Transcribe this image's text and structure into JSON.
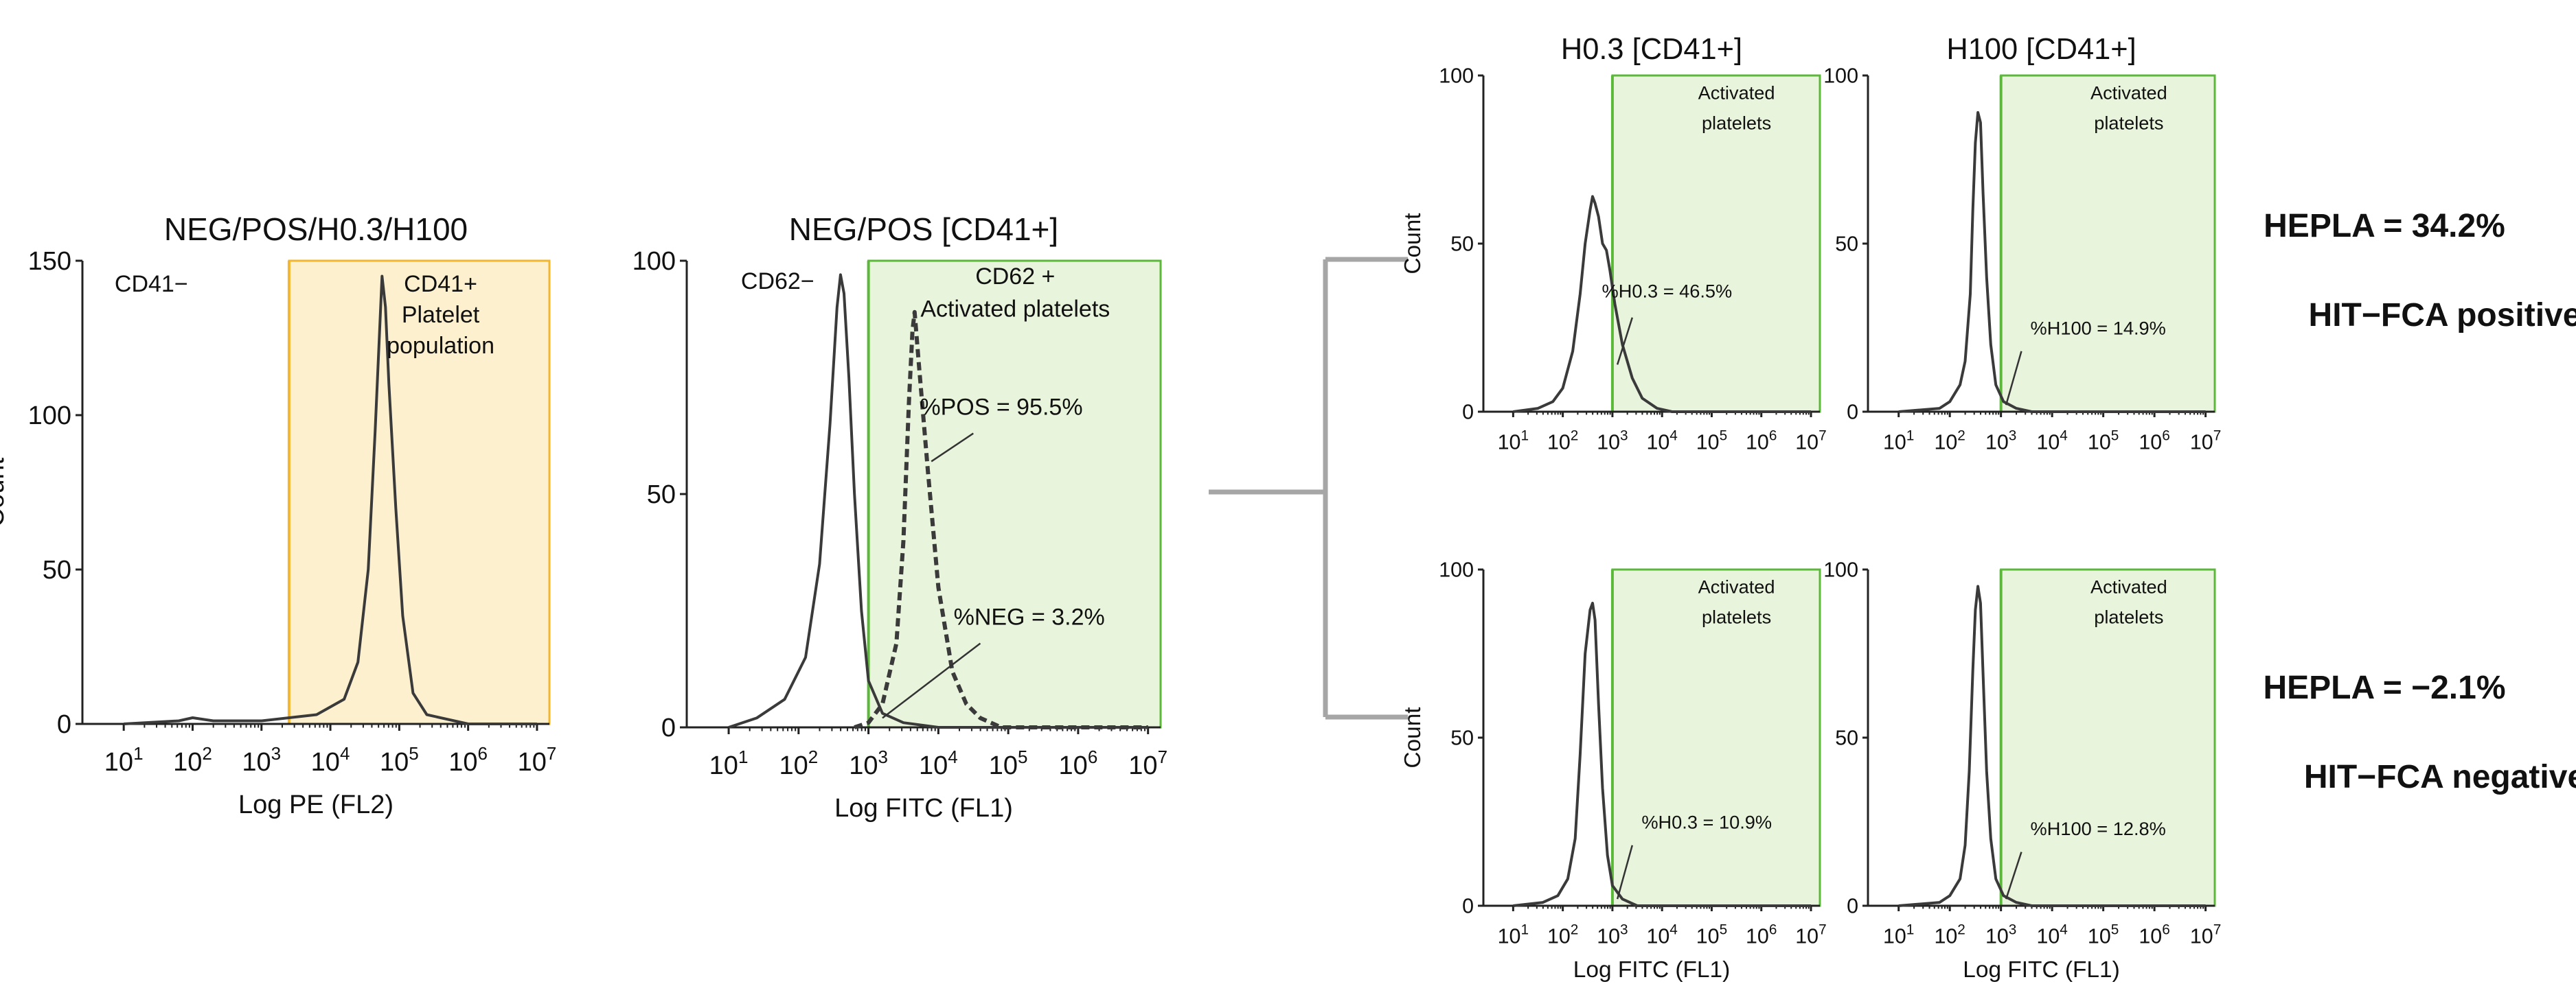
{
  "colors": {
    "cd41_gate_fill": "#fdf0cf",
    "cd41_gate_line": "#f2b630",
    "activation_gate_fill": "#e8f4dc",
    "activation_gate_line": "#5cb83a",
    "curve": "#3a3a3a",
    "connector": "#a6a6a6"
  },
  "chart_data": [
    {
      "id": "panelA",
      "type": "histogram",
      "title": "NEG/POS/H0.3/H100",
      "xlabel": "Log PE (FL2)",
      "ylabel": "Count",
      "xscale": "log",
      "xlim": [
        10,
        10000000
      ],
      "ylim": [
        0,
        150
      ],
      "xticks": [
        1,
        2,
        3,
        4,
        5,
        6,
        7
      ],
      "yticks": [
        0,
        50,
        100,
        150
      ],
      "ytick_labels": [
        "0",
        "50",
        "100",
        "150"
      ],
      "gate": {
        "from_log10": 3.4,
        "color": "cd41"
      },
      "labels": [
        {
          "text": "CD41−",
          "x_log10": 1.4,
          "y": 140
        },
        {
          "text": "CD41+",
          "x_log10": 5.6,
          "y": 140
        },
        {
          "text": "Platelet",
          "x_log10": 5.6,
          "y": 130
        },
        {
          "text": "population",
          "x_log10": 5.6,
          "y": 120
        }
      ],
      "series": [
        {
          "style": "solid",
          "points": [
            [
              1.0,
              0
            ],
            [
              1.8,
              1
            ],
            [
              2.0,
              2
            ],
            [
              2.3,
              1
            ],
            [
              3.0,
              1
            ],
            [
              3.8,
              3
            ],
            [
              4.2,
              8
            ],
            [
              4.4,
              20
            ],
            [
              4.55,
              50
            ],
            [
              4.65,
              95
            ],
            [
              4.72,
              130
            ],
            [
              4.75,
              145
            ],
            [
              4.8,
              135
            ],
            [
              4.85,
              110
            ],
            [
              4.95,
              70
            ],
            [
              5.05,
              35
            ],
            [
              5.2,
              10
            ],
            [
              5.4,
              3
            ],
            [
              6.0,
              0
            ],
            [
              7.0,
              0
            ]
          ]
        }
      ]
    },
    {
      "id": "panelB",
      "type": "histogram",
      "title": "NEG/POS [CD41+]",
      "xlabel": "Log FITC  (FL1)",
      "ylabel": "",
      "xscale": "log",
      "xlim": [
        10,
        10000000
      ],
      "ylim": [
        0,
        100
      ],
      "xticks": [
        1,
        2,
        3,
        4,
        5,
        6,
        7
      ],
      "yticks": [
        0,
        50,
        100
      ],
      "ytick_labels": [
        "0",
        "50",
        "100"
      ],
      "gate": {
        "from_log10": 3.0,
        "color": "activation"
      },
      "labels": [
        {
          "text": "CD62−",
          "x_log10": 1.7,
          "y": 94
        },
        {
          "text": "CD62 +",
          "x_log10": 5.1,
          "y": 95
        },
        {
          "text": "Activated platelets",
          "x_log10": 5.1,
          "y": 88
        },
        {
          "text": "%POS = 95.5%",
          "x_log10": 4.9,
          "y": 67
        },
        {
          "text": "%NEG = 3.2%",
          "x_log10": 5.3,
          "y": 22
        }
      ],
      "pointers": [
        {
          "from": [
            4.5,
            63
          ],
          "to": [
            3.9,
            57
          ]
        },
        {
          "from": [
            4.6,
            18
          ],
          "to": [
            3.2,
            2
          ]
        }
      ],
      "series": [
        {
          "style": "solid",
          "points": [
            [
              1.0,
              0
            ],
            [
              1.4,
              2
            ],
            [
              1.8,
              6
            ],
            [
              2.1,
              15
            ],
            [
              2.3,
              35
            ],
            [
              2.45,
              65
            ],
            [
              2.55,
              90
            ],
            [
              2.6,
              97
            ],
            [
              2.65,
              93
            ],
            [
              2.72,
              75
            ],
            [
              2.8,
              50
            ],
            [
              2.9,
              25
            ],
            [
              3.0,
              10
            ],
            [
              3.2,
              3
            ],
            [
              3.5,
              1
            ],
            [
              4.0,
              0
            ],
            [
              7.0,
              0
            ]
          ]
        },
        {
          "style": "dashed",
          "points": [
            [
              2.8,
              0
            ],
            [
              3.0,
              1
            ],
            [
              3.2,
              5
            ],
            [
              3.4,
              18
            ],
            [
              3.5,
              40
            ],
            [
              3.58,
              70
            ],
            [
              3.63,
              85
            ],
            [
              3.66,
              89
            ],
            [
              3.72,
              78
            ],
            [
              3.85,
              55
            ],
            [
              4.0,
              30
            ],
            [
              4.2,
              12
            ],
            [
              4.4,
              5
            ],
            [
              4.6,
              2
            ],
            [
              4.9,
              0
            ],
            [
              7.0,
              0
            ]
          ]
        }
      ]
    },
    {
      "id": "panelC1",
      "type": "histogram",
      "title": "H0.3 [CD41+]",
      "xlabel": "",
      "ylabel": "Count",
      "xscale": "log",
      "xlim": [
        10,
        10000000
      ],
      "ylim": [
        0,
        100
      ],
      "xticks": [
        1,
        2,
        3,
        4,
        5,
        6,
        7
      ],
      "yticks": [
        0,
        50,
        100
      ],
      "ytick_labels": [
        "0",
        "50",
        "100"
      ],
      "gate": {
        "from_log10": 3.0,
        "color": "activation"
      },
      "labels": [
        {
          "text": "Activated",
          "x_log10": 5.5,
          "y": 93
        },
        {
          "text": "platelets",
          "x_log10": 5.5,
          "y": 84
        },
        {
          "text": "%H0.3 = 46.5%",
          "x_log10": 4.1,
          "y": 34
        }
      ],
      "pointers": [
        {
          "from": [
            3.4,
            28
          ],
          "to": [
            3.1,
            14
          ]
        }
      ],
      "series": [
        {
          "style": "solid",
          "points": [
            [
              1.0,
              0
            ],
            [
              1.5,
              1
            ],
            [
              1.8,
              3
            ],
            [
              2.0,
              7
            ],
            [
              2.2,
              18
            ],
            [
              2.35,
              35
            ],
            [
              2.45,
              50
            ],
            [
              2.55,
              60
            ],
            [
              2.6,
              64
            ],
            [
              2.65,
              62
            ],
            [
              2.72,
              58
            ],
            [
              2.8,
              50
            ],
            [
              2.88,
              48
            ],
            [
              2.95,
              42
            ],
            [
              3.05,
              32
            ],
            [
              3.2,
              20
            ],
            [
              3.4,
              10
            ],
            [
              3.6,
              4
            ],
            [
              3.9,
              1
            ],
            [
              4.2,
              0
            ],
            [
              7.0,
              0
            ]
          ]
        }
      ]
    },
    {
      "id": "panelC2",
      "type": "histogram",
      "title": "H100 [CD41+]",
      "xlabel": "",
      "ylabel": "",
      "xscale": "log",
      "xlim": [
        10,
        10000000
      ],
      "ylim": [
        0,
        100
      ],
      "xticks": [
        1,
        2,
        3,
        4,
        5,
        6,
        7
      ],
      "yticks": [
        0,
        50,
        100
      ],
      "ytick_labels": [
        "0",
        "50",
        "100"
      ],
      "gate": {
        "from_log10": 3.0,
        "color": "activation"
      },
      "labels": [
        {
          "text": "Activated",
          "x_log10": 5.5,
          "y": 93
        },
        {
          "text": "platelets",
          "x_log10": 5.5,
          "y": 84
        },
        {
          "text": "%H100 = 14.9%",
          "x_log10": 4.9,
          "y": 23
        }
      ],
      "pointers": [
        {
          "from": [
            3.4,
            18
          ],
          "to": [
            3.1,
            2
          ]
        }
      ],
      "series": [
        {
          "style": "solid",
          "points": [
            [
              1.0,
              0
            ],
            [
              1.8,
              1
            ],
            [
              2.0,
              3
            ],
            [
              2.2,
              8
            ],
            [
              2.3,
              15
            ],
            [
              2.4,
              35
            ],
            [
              2.45,
              60
            ],
            [
              2.5,
              80
            ],
            [
              2.55,
              89
            ],
            [
              2.6,
              86
            ],
            [
              2.65,
              65
            ],
            [
              2.72,
              40
            ],
            [
              2.8,
              20
            ],
            [
              2.9,
              8
            ],
            [
              3.05,
              3
            ],
            [
              3.3,
              1
            ],
            [
              3.6,
              0
            ],
            [
              7.0,
              0
            ]
          ]
        }
      ]
    },
    {
      "id": "panelC3",
      "type": "histogram",
      "title": "",
      "xlabel": "Log FITC  (FL1)",
      "ylabel": "Count",
      "xscale": "log",
      "xlim": [
        10,
        10000000
      ],
      "ylim": [
        0,
        100
      ],
      "xticks": [
        1,
        2,
        3,
        4,
        5,
        6,
        7
      ],
      "yticks": [
        0,
        50,
        100
      ],
      "ytick_labels": [
        "0",
        "50",
        "100"
      ],
      "gate": {
        "from_log10": 3.0,
        "color": "activation"
      },
      "labels": [
        {
          "text": "Activated",
          "x_log10": 5.5,
          "y": 93
        },
        {
          "text": "platelets",
          "x_log10": 5.5,
          "y": 84
        },
        {
          "text": "%H0.3 = 10.9%",
          "x_log10": 4.9,
          "y": 23
        }
      ],
      "pointers": [
        {
          "from": [
            3.4,
            18
          ],
          "to": [
            3.1,
            2
          ]
        }
      ],
      "series": [
        {
          "style": "solid",
          "points": [
            [
              1.0,
              0
            ],
            [
              1.6,
              1
            ],
            [
              1.9,
              3
            ],
            [
              2.1,
              8
            ],
            [
              2.25,
              20
            ],
            [
              2.35,
              45
            ],
            [
              2.45,
              75
            ],
            [
              2.55,
              88
            ],
            [
              2.6,
              90
            ],
            [
              2.65,
              85
            ],
            [
              2.72,
              60
            ],
            [
              2.8,
              35
            ],
            [
              2.9,
              15
            ],
            [
              3.0,
              6
            ],
            [
              3.2,
              2
            ],
            [
              3.5,
              0
            ],
            [
              7.0,
              0
            ]
          ]
        }
      ]
    },
    {
      "id": "panelC4",
      "type": "histogram",
      "title": "",
      "xlabel": "Log FITC  (FL1)",
      "ylabel": "",
      "xscale": "log",
      "xlim": [
        10,
        10000000
      ],
      "ylim": [
        0,
        100
      ],
      "xticks": [
        1,
        2,
        3,
        4,
        5,
        6,
        7
      ],
      "yticks": [
        0,
        50,
        100
      ],
      "ytick_labels": [
        "0",
        "50",
        "100"
      ],
      "gate": {
        "from_log10": 3.0,
        "color": "activation"
      },
      "labels": [
        {
          "text": "Activated",
          "x_log10": 5.5,
          "y": 93
        },
        {
          "text": "platelets",
          "x_log10": 5.5,
          "y": 84
        },
        {
          "text": "%H100 = 12.8%",
          "x_log10": 4.9,
          "y": 21
        }
      ],
      "pointers": [
        {
          "from": [
            3.4,
            16
          ],
          "to": [
            3.1,
            2
          ]
        }
      ],
      "series": [
        {
          "style": "solid",
          "points": [
            [
              1.0,
              0
            ],
            [
              1.8,
              1
            ],
            [
              2.0,
              3
            ],
            [
              2.2,
              8
            ],
            [
              2.3,
              18
            ],
            [
              2.38,
              40
            ],
            [
              2.45,
              70
            ],
            [
              2.5,
              88
            ],
            [
              2.55,
              95
            ],
            [
              2.6,
              90
            ],
            [
              2.66,
              65
            ],
            [
              2.72,
              40
            ],
            [
              2.8,
              20
            ],
            [
              2.9,
              8
            ],
            [
              3.05,
              3
            ],
            [
              3.3,
              1
            ],
            [
              3.6,
              0
            ],
            [
              7.0,
              0
            ]
          ]
        }
      ]
    }
  ],
  "results": [
    {
      "hepla": "HEPLA = 34.2%",
      "verdict": "HIT−FCA positive"
    },
    {
      "hepla": "HEPLA = −2.1%",
      "verdict": "HIT−FCA negative"
    }
  ]
}
